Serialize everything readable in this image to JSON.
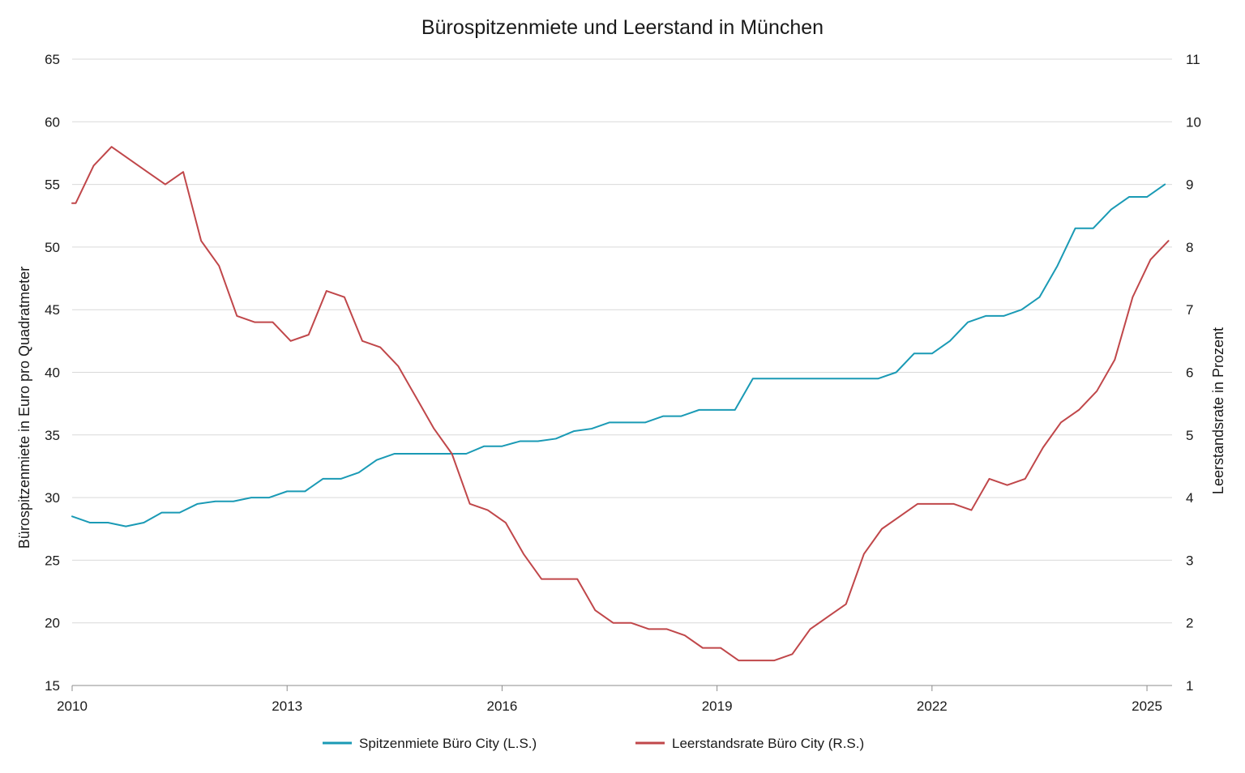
{
  "chart_data": {
    "type": "line",
    "title": "Bürospitzenmiete und Leerstand in München",
    "ylabel_left": "Bürospitzenmiete in Euro pro Quadratmeter",
    "ylabel_right": "Leerstandsrate in Prozent",
    "xlim": [
      2010,
      2025.35
    ],
    "ylim_left": [
      15,
      65
    ],
    "ylim_right": [
      1,
      11
    ],
    "x_ticks": [
      2010,
      2013,
      2016,
      2019,
      2022,
      2025
    ],
    "y_ticks_left": [
      15,
      20,
      25,
      30,
      35,
      40,
      45,
      50,
      55,
      60,
      65
    ],
    "y_ticks_right": [
      1,
      2,
      3,
      4,
      5,
      6,
      7,
      8,
      9,
      10,
      11
    ],
    "grid": true,
    "legend_position": "bottom",
    "series": [
      {
        "name": "Spitzenmiete Büro City (L.S.)",
        "axis": "left",
        "color": "#1a9ab5",
        "x": [
          2010.0,
          2010.25,
          2010.5,
          2010.75,
          2011.0,
          2011.25,
          2011.5,
          2011.75,
          2012.0,
          2012.25,
          2012.5,
          2012.75,
          2013.0,
          2013.25,
          2013.5,
          2013.75,
          2014.0,
          2014.25,
          2014.5,
          2014.75,
          2015.0,
          2015.25,
          2015.5,
          2015.75,
          2016.0,
          2016.25,
          2016.5,
          2016.75,
          2017.0,
          2017.25,
          2017.5,
          2017.75,
          2018.0,
          2018.25,
          2018.5,
          2018.75,
          2019.0,
          2019.25,
          2019.5,
          2019.75,
          2020.0,
          2020.25,
          2020.5,
          2020.75,
          2021.0,
          2021.25,
          2021.5,
          2021.75,
          2022.0,
          2022.25,
          2022.5,
          2022.75,
          2023.0,
          2023.25,
          2023.5,
          2023.75,
          2024.0,
          2024.25,
          2024.5,
          2024.75,
          2025.0,
          2025.25
        ],
        "values": [
          28.5,
          28.0,
          28.0,
          27.7,
          28.0,
          28.8,
          28.8,
          29.5,
          29.7,
          29.7,
          30.0,
          30.0,
          30.5,
          30.5,
          31.5,
          31.5,
          32.0,
          33.0,
          33.5,
          33.5,
          33.5,
          33.5,
          33.5,
          34.1,
          34.1,
          34.5,
          34.5,
          34.7,
          35.3,
          35.5,
          36.0,
          36.0,
          36.0,
          36.5,
          36.5,
          37.0,
          37.0,
          37.0,
          39.5,
          39.5,
          39.5,
          39.5,
          39.5,
          39.5,
          39.5,
          39.5,
          40.0,
          41.5,
          41.5,
          42.5,
          44.0,
          44.5,
          44.5,
          45.0,
          46.0,
          48.5,
          51.5,
          51.5,
          53.0,
          54.0,
          54.0,
          55.0
        ]
      },
      {
        "name": "Leerstandsrate Büro City (R.S.)",
        "axis": "right",
        "color": "#c0474a",
        "x": [
          2010.0,
          2010.05,
          2010.3,
          2010.55,
          2010.8,
          2011.05,
          2011.3,
          2011.55,
          2011.8,
          2012.05,
          2012.3,
          2012.55,
          2012.8,
          2013.05,
          2013.3,
          2013.55,
          2013.8,
          2014.05,
          2014.3,
          2014.55,
          2014.8,
          2015.05,
          2015.3,
          2015.55,
          2015.8,
          2016.05,
          2016.3,
          2016.55,
          2016.8,
          2017.05,
          2017.3,
          2017.55,
          2017.8,
          2018.05,
          2018.3,
          2018.55,
          2018.8,
          2019.05,
          2019.3,
          2019.55,
          2019.8,
          2020.05,
          2020.3,
          2020.55,
          2020.8,
          2021.05,
          2021.3,
          2021.55,
          2021.8,
          2022.05,
          2022.3,
          2022.55,
          2022.8,
          2023.05,
          2023.3,
          2023.55,
          2023.8,
          2024.05,
          2024.3,
          2024.55,
          2024.8,
          2025.05,
          2025.3
        ],
        "values": [
          8.7,
          8.7,
          9.3,
          9.6,
          9.4,
          9.2,
          9.0,
          9.2,
          8.1,
          7.7,
          6.9,
          6.8,
          6.8,
          6.5,
          6.6,
          7.3,
          7.2,
          6.5,
          6.4,
          6.1,
          5.6,
          5.1,
          4.7,
          3.9,
          3.8,
          3.6,
          3.1,
          2.7,
          2.7,
          2.7,
          2.2,
          2.0,
          2.0,
          1.9,
          1.9,
          1.8,
          1.6,
          1.6,
          1.4,
          1.4,
          1.4,
          1.5,
          1.9,
          2.1,
          2.3,
          3.1,
          3.5,
          3.7,
          3.9,
          3.9,
          3.9,
          3.8,
          4.3,
          4.2,
          4.3,
          4.8,
          5.2,
          5.4,
          5.7,
          6.2,
          7.2,
          7.8,
          8.1
        ]
      }
    ]
  }
}
